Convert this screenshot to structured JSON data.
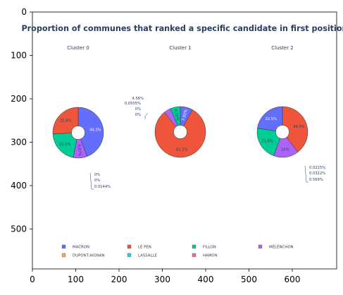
{
  "chart_data": {
    "type": "pie",
    "title": "Proportion of communes that ranked a specific candidate in first position",
    "x_axis_ticks": [
      "0",
      "100",
      "200",
      "300",
      "400",
      "500",
      "600"
    ],
    "y_axis_ticks": [
      "0",
      "100",
      "200",
      "300",
      "400",
      "500"
    ],
    "legend": [
      {
        "name": "MACRON",
        "color": "#636efa"
      },
      {
        "name": "DUPONT-AIGNAN",
        "color": "#ffa15a"
      },
      {
        "name": "LE PEN",
        "color": "#ef553b"
      },
      {
        "name": "LASSALLE",
        "color": "#19d3f3"
      },
      {
        "name": "FILLON",
        "color": "#00cc96"
      },
      {
        "name": "HAMON",
        "color": "#ff6692"
      },
      {
        "name": "MÉLENCHON",
        "color": "#ab63fa"
      }
    ],
    "charts": [
      {
        "name": "Cluster 0",
        "slices": [
          {
            "label": "MACRON",
            "value": 44.3,
            "text": "44.3%",
            "color": "#636efa"
          },
          {
            "label": "MÉLENCHON",
            "value": 8.87,
            "text": "8.87%",
            "color": "#ab63fa"
          },
          {
            "label": "FILLON",
            "value": 21.1,
            "text": "21.1%",
            "color": "#00cc96"
          },
          {
            "label": "LE PEN",
            "value": 25.8,
            "text": "25.8%",
            "color": "#ef553b"
          }
        ],
        "callouts": [
          "0%",
          "0%",
          "0.0144%"
        ]
      },
      {
        "name": "Cluster 1",
        "slices": [
          {
            "label": "MACRON",
            "value": 7.92,
            "text": "7.92%",
            "color": "#636efa"
          },
          {
            "label": "LE PEN",
            "value": 81.2,
            "text": "81.2%",
            "color": "#ef553b"
          },
          {
            "label": "MÉLENCHON",
            "value": 4.56,
            "text": "",
            "color": "#ab63fa"
          },
          {
            "label": "FILLON",
            "value": 6.31,
            "text": "6.31%",
            "color": "#00cc96"
          }
        ],
        "callouts": [
          "4.56%",
          "0.0505%",
          "0%",
          "0%"
        ]
      },
      {
        "name": "Cluster 2",
        "slices": [
          {
            "label": "LE PEN",
            "value": 39.3,
            "text": "39.3%",
            "color": "#ef553b"
          },
          {
            "label": "MÉLENCHON",
            "value": 16,
            "text": "16%",
            "color": "#ab63fa"
          },
          {
            "label": "FILLON",
            "value": 21.6,
            "text": "21.6%",
            "color": "#00cc96"
          },
          {
            "label": "MACRON",
            "value": 22.5,
            "text": "22.5%",
            "color": "#636efa"
          }
        ],
        "callouts": [
          "0.0215%",
          "0.0322%",
          "0.569%"
        ]
      }
    ]
  }
}
